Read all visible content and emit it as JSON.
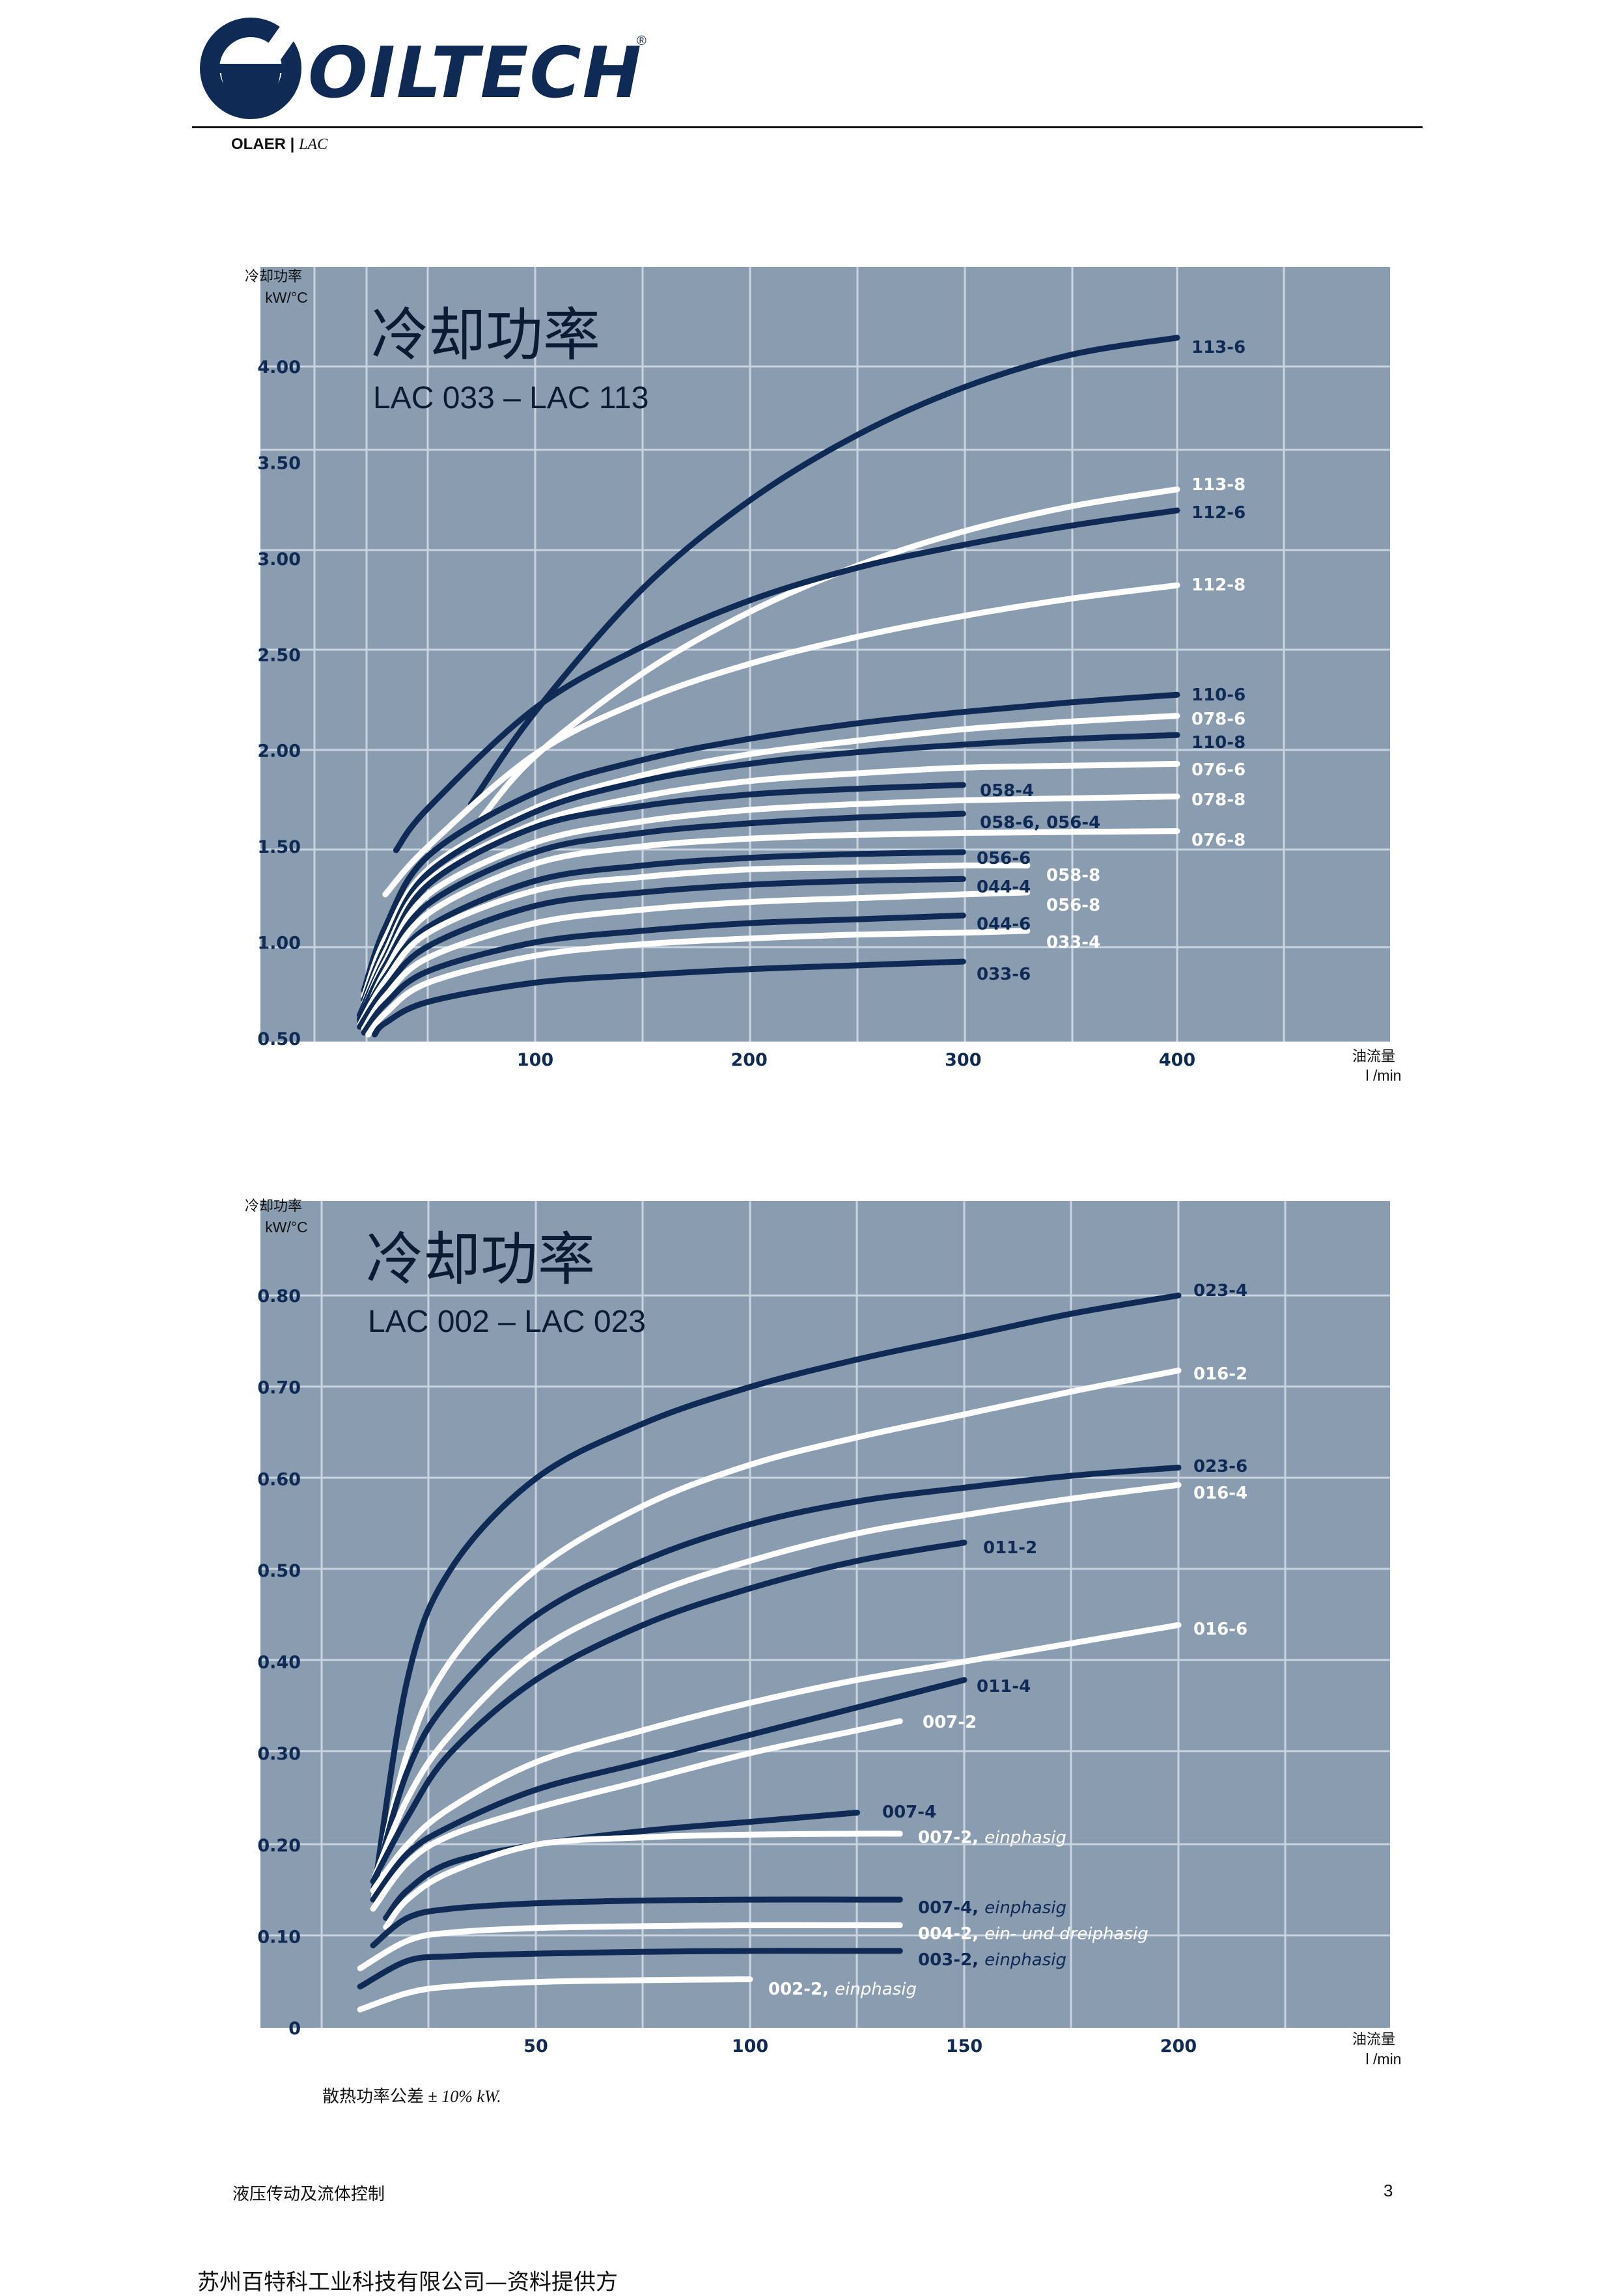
{
  "header": {
    "logo_text": "OILTECH",
    "registered_mark": "®",
    "brand_main": "OLAER",
    "brand_sep": " | ",
    "brand_sub": "LAC"
  },
  "colors": {
    "plot_background": "#8a9cb0",
    "grid": "#c9d4df",
    "dark_series": "#0e2a55",
    "light_series": "#ffffff",
    "logo_blue": "#0e2a55"
  },
  "chart_data": [
    {
      "type": "line",
      "title": "冷却功率",
      "subtitle": "LAC 033 – LAC 113",
      "ylabel": "冷却功率",
      "yunit": "kW/°C",
      "xlabel": "油流量",
      "xunit": "l /min",
      "xlim": [
        0,
        520
      ],
      "ylim": [
        0.5,
        4.5
      ],
      "x_ticks": [
        "100",
        "200",
        "300",
        "400"
      ],
      "y_ticks": [
        "0.50",
        "1.00",
        "1.50",
        "2.00",
        "2.50",
        "3.00",
        "3.50",
        "4.00"
      ],
      "grid": true,
      "series": [
        {
          "name": "113-6",
          "color": "dark",
          "x": [
            70,
            100,
            150,
            200,
            250,
            300,
            350,
            400
          ],
          "y": [
            1.72,
            2.2,
            2.84,
            3.3,
            3.64,
            3.89,
            4.06,
            4.15
          ]
        },
        {
          "name": "113-8",
          "color": "light",
          "x": [
            75,
            100,
            150,
            200,
            250,
            300,
            350,
            400
          ],
          "y": [
            1.65,
            1.97,
            2.4,
            2.72,
            2.96,
            3.14,
            3.27,
            3.36
          ]
        },
        {
          "name": "112-6",
          "color": "dark",
          "x": [
            35,
            50,
            100,
            150,
            200,
            250,
            300,
            350,
            400
          ],
          "y": [
            1.48,
            1.7,
            2.22,
            2.54,
            2.78,
            2.95,
            3.07,
            3.17,
            3.25
          ]
        },
        {
          "name": "112-8",
          "color": "light",
          "x": [
            30,
            50,
            100,
            150,
            200,
            250,
            300,
            350,
            400
          ],
          "y": [
            1.25,
            1.5,
            1.98,
            2.26,
            2.45,
            2.59,
            2.7,
            2.79,
            2.86
          ]
        },
        {
          "name": "110-6",
          "color": "dark",
          "x": [
            20,
            30,
            50,
            100,
            150,
            200,
            250,
            300,
            350,
            400
          ],
          "y": [
            0.75,
            1.08,
            1.45,
            1.78,
            1.95,
            2.06,
            2.14,
            2.2,
            2.25,
            2.29
          ]
        },
        {
          "name": "078-6",
          "color": "light",
          "x": [
            20,
            30,
            50,
            100,
            150,
            200,
            250,
            300,
            350,
            400
          ],
          "y": [
            0.72,
            1.02,
            1.38,
            1.7,
            1.87,
            1.98,
            2.05,
            2.11,
            2.15,
            2.18
          ]
        },
        {
          "name": "110-8",
          "color": "dark",
          "x": [
            20,
            30,
            50,
            100,
            150,
            200,
            250,
            300,
            350,
            400
          ],
          "y": [
            0.7,
            0.98,
            1.36,
            1.68,
            1.84,
            1.93,
            1.99,
            2.03,
            2.06,
            2.08
          ]
        },
        {
          "name": "076-6",
          "color": "light",
          "x": [
            20,
            30,
            50,
            100,
            150,
            200,
            250,
            300,
            350,
            400
          ],
          "y": [
            0.68,
            0.95,
            1.32,
            1.62,
            1.76,
            1.84,
            1.88,
            1.91,
            1.92,
            1.93
          ]
        },
        {
          "name": "058-4",
          "color": "dark",
          "x": [
            18,
            30,
            50,
            100,
            150,
            200,
            250,
            300
          ],
          "y": [
            0.62,
            0.92,
            1.3,
            1.6,
            1.71,
            1.77,
            1.8,
            1.82
          ]
        },
        {
          "name": "078-8",
          "color": "light",
          "x": [
            20,
            30,
            50,
            100,
            150,
            200,
            250,
            300,
            350,
            400
          ],
          "y": [
            0.65,
            0.9,
            1.25,
            1.52,
            1.63,
            1.69,
            1.72,
            1.74,
            1.75,
            1.76
          ]
        },
        {
          "name": "058-6, 056-4",
          "color": "dark",
          "x": [
            18,
            30,
            50,
            100,
            150,
            200,
            250,
            300
          ],
          "y": [
            0.6,
            0.88,
            1.2,
            1.47,
            1.57,
            1.62,
            1.65,
            1.67
          ]
        },
        {
          "name": "076-8",
          "color": "light",
          "x": [
            20,
            30,
            50,
            100,
            150,
            200,
            250,
            300,
            350,
            400
          ],
          "y": [
            0.6,
            0.85,
            1.15,
            1.41,
            1.5,
            1.54,
            1.56,
            1.57,
            1.575,
            1.58
          ]
        },
        {
          "name": "056-6",
          "color": "dark",
          "x": [
            18,
            30,
            50,
            100,
            150,
            200,
            250,
            300
          ],
          "y": [
            0.58,
            0.82,
            1.08,
            1.32,
            1.4,
            1.44,
            1.46,
            1.47
          ]
        },
        {
          "name": "058-8",
          "color": "light",
          "x": [
            18,
            30,
            50,
            100,
            150,
            200,
            250,
            300,
            330
          ],
          "y": [
            0.57,
            0.8,
            1.05,
            1.27,
            1.34,
            1.38,
            1.39,
            1.4,
            1.4
          ]
        },
        {
          "name": "044-4",
          "color": "dark",
          "x": [
            18,
            30,
            50,
            100,
            150,
            200,
            250,
            300
          ],
          "y": [
            0.56,
            0.76,
            0.98,
            1.19,
            1.26,
            1.3,
            1.32,
            1.33
          ]
        },
        {
          "name": "056-8",
          "color": "light",
          "x": [
            20,
            30,
            50,
            100,
            150,
            200,
            250,
            300,
            330
          ],
          "y": [
            0.55,
            0.72,
            0.92,
            1.1,
            1.17,
            1.21,
            1.23,
            1.25,
            1.26
          ]
        },
        {
          "name": "044-6",
          "color": "dark",
          "x": [
            20,
            30,
            50,
            100,
            150,
            200,
            250,
            300
          ],
          "y": [
            0.53,
            0.68,
            0.85,
            1.0,
            1.06,
            1.1,
            1.12,
            1.14
          ]
        },
        {
          "name": "033-4",
          "color": "light",
          "x": [
            22,
            30,
            50,
            100,
            150,
            200,
            250,
            300,
            330
          ],
          "y": [
            0.52,
            0.63,
            0.79,
            0.93,
            0.99,
            1.02,
            1.04,
            1.05,
            1.06
          ]
        },
        {
          "name": "033-6",
          "color": "dark",
          "x": [
            25,
            30,
            50,
            100,
            150,
            200,
            250,
            300
          ],
          "y": [
            0.52,
            0.58,
            0.69,
            0.79,
            0.83,
            0.86,
            0.88,
            0.9
          ]
        }
      ]
    },
    {
      "type": "line",
      "title": "冷却功率",
      "subtitle": "LAC 002 – LAC 023",
      "ylabel": "冷却功率",
      "yunit": "kW/°C",
      "xlabel": "油流量",
      "xunit": "l /min",
      "xlim": [
        0,
        250
      ],
      "ylim": [
        0,
        0.9
      ],
      "x_ticks": [
        "50",
        "100",
        "150",
        "200"
      ],
      "y_ticks": [
        "0",
        "0.10",
        "0.20",
        "0.30",
        "0.40",
        "0.50",
        "0.60",
        "0.70",
        "0.80"
      ],
      "grid": true,
      "series": [
        {
          "name": "023-4",
          "color": "dark",
          "x": [
            12,
            20,
            30,
            50,
            75,
            100,
            125,
            150,
            175,
            200
          ],
          "y": [
            0.14,
            0.38,
            0.5,
            0.6,
            0.66,
            0.7,
            0.73,
            0.755,
            0.78,
            0.8
          ]
        },
        {
          "name": "016-2",
          "color": "light",
          "x": [
            12,
            20,
            30,
            50,
            75,
            100,
            125,
            150,
            175,
            200
          ],
          "y": [
            0.14,
            0.3,
            0.4,
            0.5,
            0.57,
            0.615,
            0.645,
            0.67,
            0.695,
            0.718
          ]
        },
        {
          "name": "023-6",
          "color": "dark",
          "x": [
            12,
            20,
            30,
            50,
            75,
            100,
            125,
            150,
            175,
            200
          ],
          "y": [
            0.15,
            0.28,
            0.36,
            0.45,
            0.51,
            0.55,
            0.575,
            0.59,
            0.603,
            0.612
          ]
        },
        {
          "name": "016-4",
          "color": "light",
          "x": [
            12,
            20,
            30,
            50,
            75,
            100,
            125,
            150,
            175,
            200
          ],
          "y": [
            0.16,
            0.25,
            0.32,
            0.41,
            0.47,
            0.51,
            0.54,
            0.56,
            0.578,
            0.593
          ]
        },
        {
          "name": "011-2",
          "color": "dark",
          "x": [
            12,
            20,
            30,
            50,
            75,
            100,
            125,
            150
          ],
          "y": [
            0.16,
            0.23,
            0.3,
            0.38,
            0.44,
            0.48,
            0.51,
            0.53
          ]
        },
        {
          "name": "016-6",
          "color": "light",
          "x": [
            12,
            20,
            30,
            50,
            75,
            100,
            125,
            150,
            175,
            200
          ],
          "y": [
            0.15,
            0.2,
            0.24,
            0.29,
            0.325,
            0.355,
            0.38,
            0.4,
            0.42,
            0.44
          ]
        },
        {
          "name": "011-4",
          "color": "dark",
          "x": [
            12,
            20,
            30,
            50,
            75,
            100,
            125,
            150
          ],
          "y": [
            0.14,
            0.19,
            0.22,
            0.26,
            0.29,
            0.32,
            0.35,
            0.38
          ]
        },
        {
          "name": "007-2",
          "color": "light",
          "x": [
            12,
            20,
            30,
            50,
            75,
            100,
            125,
            135
          ],
          "y": [
            0.13,
            0.18,
            0.21,
            0.24,
            0.27,
            0.3,
            0.325,
            0.335
          ]
        },
        {
          "name": "007-4",
          "color": "dark",
          "x": [
            15,
            20,
            30,
            50,
            75,
            100,
            125
          ],
          "y": [
            0.12,
            0.15,
            0.18,
            0.2,
            0.215,
            0.225,
            0.235
          ]
        },
        {
          "name": "007-2, einphasig",
          "color": "light",
          "x": [
            15,
            20,
            30,
            50,
            75,
            100,
            125,
            135
          ],
          "y": [
            0.11,
            0.14,
            0.17,
            0.2,
            0.208,
            0.211,
            0.212,
            0.212
          ]
        },
        {
          "name": "007-4, einphasig",
          "color": "dark",
          "x": [
            12,
            20,
            30,
            50,
            75,
            100,
            125,
            135
          ],
          "y": [
            0.09,
            0.12,
            0.13,
            0.136,
            0.139,
            0.14,
            0.14,
            0.14
          ]
        },
        {
          "name": "004-2, ein- und dreiphasig",
          "color": "light",
          "x": [
            9,
            20,
            30,
            50,
            75,
            100,
            125,
            135
          ],
          "y": [
            0.065,
            0.095,
            0.104,
            0.109,
            0.111,
            0.112,
            0.112,
            0.112
          ]
        },
        {
          "name": "003-2, einphasig",
          "color": "dark",
          "x": [
            9,
            20,
            30,
            50,
            75,
            100,
            125,
            135
          ],
          "y": [
            0.045,
            0.073,
            0.078,
            0.081,
            0.083,
            0.084,
            0.084,
            0.084
          ]
        },
        {
          "name": "002-2, einphasig",
          "color": "light",
          "x": [
            9,
            20,
            30,
            50,
            75,
            100
          ],
          "y": [
            0.02,
            0.038,
            0.045,
            0.05,
            0.052,
            0.053
          ]
        }
      ]
    }
  ],
  "tolerance_note": {
    "prefix": "散热功率公差 ± ",
    "value": "10% kW."
  },
  "footer": {
    "left": "液压传动及流体控制",
    "page": "3"
  },
  "company_line": "苏州百特科工业科技有限公司—资料提供方"
}
